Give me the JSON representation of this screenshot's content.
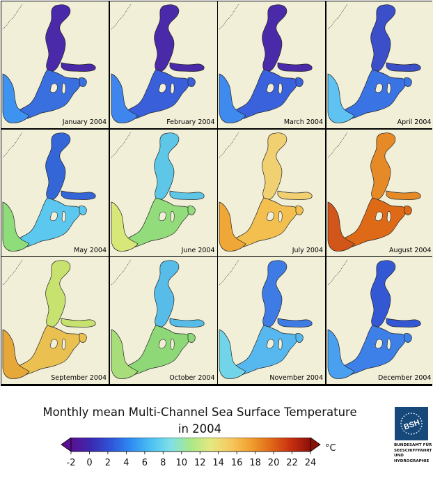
{
  "panels": [
    {
      "label": "January 2004",
      "colors": {
        "north": "#4a2aa8",
        "south": "#3a6fe0",
        "west": "#3f93f0"
      }
    },
    {
      "label": "February 2004",
      "colors": {
        "north": "#4a2aa8",
        "south": "#3a5fda",
        "west": "#3f85ee"
      }
    },
    {
      "label": "March 2004",
      "colors": {
        "north": "#4a2aa8",
        "south": "#3a62dc",
        "west": "#3f8aef"
      }
    },
    {
      "label": "April 2004",
      "colors": {
        "north": "#3a4fc8",
        "south": "#3a74e4",
        "west": "#5ec2f2"
      }
    },
    {
      "label": "May 2004",
      "colors": {
        "north": "#3566d8",
        "south": "#5cc8ef",
        "west": "#8edc7a"
      }
    },
    {
      "label": "June 2004",
      "colors": {
        "north": "#5ec7e8",
        "south": "#92dc7c",
        "west": "#d8e878"
      }
    },
    {
      "label": "July 2004",
      "colors": {
        "north": "#f0d070",
        "south": "#f3c050",
        "west": "#efa838"
      }
    },
    {
      "label": "August 2004",
      "colors": {
        "north": "#e58a26",
        "south": "#de6a18",
        "west": "#d2561a"
      }
    },
    {
      "label": "September 2004",
      "colors": {
        "north": "#c8e270",
        "south": "#eac050",
        "west": "#e7a83a"
      }
    },
    {
      "label": "October 2004",
      "colors": {
        "north": "#58bce8",
        "south": "#8ed878",
        "west": "#a8de7a"
      }
    },
    {
      "label": "November 2004",
      "colors": {
        "north": "#3f7be4",
        "south": "#56b8ee",
        "west": "#72d4e8"
      }
    },
    {
      "label": "December 2004",
      "colors": {
        "north": "#3458d4",
        "south": "#3c80e8",
        "west": "#4aa0f0"
      }
    }
  ],
  "title": {
    "line1": "Monthly mean Multi-Channel Sea Surface Temperature",
    "line2": "in 2004"
  },
  "colorbar": {
    "min": -2,
    "max": 24,
    "ticks": [
      "-2",
      "0",
      "2",
      "4",
      "6",
      "8",
      "10",
      "12",
      "14",
      "16",
      "18",
      "20",
      "22",
      "24"
    ],
    "unit": "°C",
    "stops": [
      "#5a1090",
      "#3a2ab0",
      "#2f55d8",
      "#2f8cf2",
      "#4cc0f2",
      "#80e0e8",
      "#a8e888",
      "#e6e880",
      "#f6c860",
      "#f0a030",
      "#e06a18",
      "#c83010",
      "#8a1008"
    ],
    "under_color": "#5a1090",
    "over_color": "#8a1008"
  },
  "logo": {
    "mark": "BSH",
    "lines": [
      "BUNDESAMT FÜR",
      "SEESCHIFFFAHRT",
      "UND",
      "HYDROGRAPHIE"
    ],
    "color": "#17487a"
  },
  "colors": {
    "land": "#f2efd9",
    "background": "#ffffff"
  }
}
